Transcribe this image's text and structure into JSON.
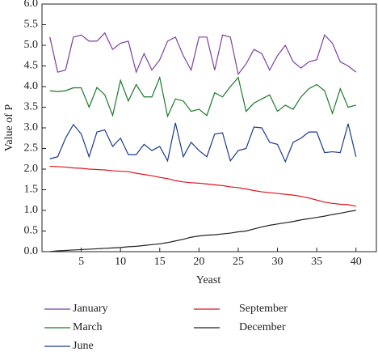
{
  "chart_data": {
    "type": "line",
    "x_label": "Yeast",
    "y_label": "Value of P",
    "x": [
      1,
      2,
      3,
      4,
      5,
      6,
      7,
      8,
      9,
      10,
      11,
      12,
      13,
      14,
      15,
      16,
      17,
      18,
      19,
      20,
      21,
      22,
      23,
      24,
      25,
      26,
      27,
      28,
      29,
      30,
      31,
      32,
      33,
      34,
      35,
      36,
      37,
      38,
      39,
      40
    ],
    "series": [
      {
        "name": "January",
        "color": "#7b3fa0",
        "values": [
          5.2,
          4.35,
          4.4,
          5.2,
          5.25,
          5.1,
          5.1,
          5.3,
          4.9,
          5.05,
          5.1,
          4.35,
          4.8,
          4.4,
          4.65,
          5.1,
          5.2,
          4.75,
          4.4,
          5.2,
          5.2,
          4.4,
          5.25,
          5.2,
          4.3,
          4.55,
          4.9,
          4.8,
          4.4,
          4.75,
          5.0,
          4.6,
          4.45,
          4.6,
          4.65,
          5.25,
          5.05,
          4.6,
          4.5,
          4.35
        ]
      },
      {
        "name": "March",
        "color": "#1a7a2a",
        "values": [
          3.9,
          3.88,
          3.9,
          3.97,
          3.97,
          3.5,
          3.98,
          3.8,
          3.3,
          4.15,
          3.65,
          4.05,
          3.75,
          3.75,
          4.22,
          3.28,
          3.7,
          3.65,
          3.4,
          3.45,
          3.3,
          3.85,
          3.75,
          4.0,
          4.22,
          3.4,
          3.6,
          3.7,
          3.8,
          3.4,
          3.55,
          3.45,
          3.75,
          3.95,
          4.05,
          3.9,
          3.35,
          3.95,
          3.5,
          3.55
        ]
      },
      {
        "name": "June",
        "color": "#1a3a8a",
        "values": [
          2.25,
          2.3,
          2.75,
          3.08,
          2.85,
          2.3,
          2.9,
          2.95,
          2.55,
          2.75,
          2.35,
          2.35,
          2.6,
          2.45,
          2.55,
          2.2,
          3.12,
          2.3,
          2.65,
          2.45,
          2.3,
          2.85,
          2.88,
          2.2,
          2.45,
          2.5,
          3.02,
          3.0,
          2.65,
          2.6,
          2.18,
          2.65,
          2.75,
          2.9,
          2.9,
          2.4,
          2.42,
          2.4,
          3.1,
          2.3
        ]
      },
      {
        "name": "September",
        "color": "#e0141e",
        "values": [
          2.07,
          2.06,
          2.05,
          2.03,
          2.02,
          2.0,
          1.99,
          1.98,
          1.96,
          1.95,
          1.94,
          1.9,
          1.87,
          1.84,
          1.8,
          1.77,
          1.72,
          1.69,
          1.67,
          1.66,
          1.64,
          1.62,
          1.6,
          1.57,
          1.55,
          1.52,
          1.48,
          1.45,
          1.43,
          1.41,
          1.39,
          1.37,
          1.34,
          1.3,
          1.25,
          1.2,
          1.17,
          1.15,
          1.14,
          1.1
        ]
      },
      {
        "name": "December",
        "color": "#222222",
        "values": [
          0.0,
          0.02,
          0.03,
          0.04,
          0.05,
          0.06,
          0.07,
          0.08,
          0.09,
          0.1,
          0.12,
          0.13,
          0.15,
          0.17,
          0.19,
          0.22,
          0.26,
          0.3,
          0.35,
          0.38,
          0.4,
          0.41,
          0.43,
          0.45,
          0.48,
          0.5,
          0.55,
          0.6,
          0.64,
          0.67,
          0.7,
          0.73,
          0.77,
          0.8,
          0.83,
          0.86,
          0.9,
          0.93,
          0.97,
          1.0
        ]
      }
    ],
    "xlim": [
      0,
      42.6
    ],
    "ylim": [
      0,
      6
    ],
    "xticks": [
      5,
      10,
      15,
      20,
      25,
      30,
      35,
      40
    ],
    "yticks": [
      {
        "value": 0,
        "label": "0.0"
      },
      {
        "value": 0.5,
        "label": "0.5"
      },
      {
        "value": 1,
        "label": "1.0"
      },
      {
        "value": 1.5,
        "label": "1.5"
      },
      {
        "value": 2,
        "label": "2.0"
      },
      {
        "value": 2.5,
        "label": "2.5"
      },
      {
        "value": 3,
        "label": "3.0"
      },
      {
        "value": 3.5,
        "label": "3.5"
      },
      {
        "value": 4,
        "label": "4.0"
      },
      {
        "value": 4.5,
        "label": "4.5"
      },
      {
        "value": 5,
        "label": "5.0"
      },
      {
        "value": 5.5,
        "label": "5.5"
      },
      {
        "value": 6,
        "label": "6.0"
      }
    ],
    "grid": false
  }
}
